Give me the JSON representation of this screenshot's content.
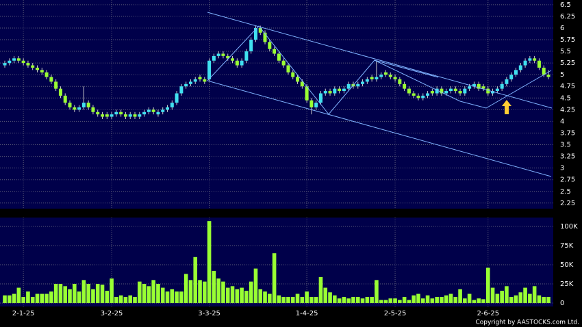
{
  "chart_data": {
    "type": "candlestick",
    "up_color": "#40e0f0",
    "down_color": "#99ff33",
    "volume_color": "#99ff33",
    "credit": "Copyright by AASTOCKS.com Ltd.",
    "categories": [
      null,
      null,
      null,
      null,
      "2-1-25",
      null,
      null,
      null,
      null,
      null,
      null,
      null,
      null,
      null,
      null,
      null,
      null,
      null,
      null,
      null,
      null,
      null,
      null,
      "3-2-25",
      null,
      null,
      null,
      null,
      null,
      null,
      null,
      null,
      null,
      null,
      null,
      null,
      null,
      null,
      null,
      null,
      null,
      null,
      null,
      null,
      "3-3-25",
      null,
      null,
      null,
      null,
      null,
      null,
      null,
      null,
      null,
      null,
      null,
      null,
      null,
      null,
      null,
      null,
      null,
      null,
      null,
      null,
      "1-4-25",
      null,
      null,
      null,
      null,
      null,
      null,
      null,
      null,
      null,
      null,
      null,
      null,
      null,
      null,
      null,
      null,
      null,
      null,
      "2-5-25",
      null,
      null,
      null,
      null,
      null,
      null,
      null,
      null,
      null,
      null,
      null,
      null,
      null,
      null,
      null,
      null,
      null,
      null,
      null,
      "2-6-25",
      null,
      null,
      null,
      null,
      null,
      null,
      null,
      null,
      null,
      null,
      null,
      null,
      null
    ],
    "candles": [
      [
        5.2,
        5.3,
        5.15,
        5.25
      ],
      [
        5.25,
        5.35,
        5.2,
        5.3
      ],
      [
        5.3,
        5.4,
        5.25,
        5.35
      ],
      [
        5.35,
        5.4,
        5.25,
        5.3
      ],
      [
        5.3,
        5.35,
        5.2,
        5.25
      ],
      [
        5.25,
        5.3,
        5.15,
        5.2
      ],
      [
        5.2,
        5.25,
        5.1,
        5.15
      ],
      [
        5.15,
        5.2,
        5.05,
        5.1
      ],
      [
        5.1,
        5.15,
        5.0,
        5.05
      ],
      [
        5.05,
        5.1,
        4.9,
        4.95
      ],
      [
        4.95,
        5.0,
        4.8,
        4.85
      ],
      [
        4.85,
        4.9,
        4.65,
        4.7
      ],
      [
        4.7,
        4.75,
        4.5,
        4.55
      ],
      [
        4.55,
        4.6,
        4.35,
        4.4
      ],
      [
        4.4,
        4.45,
        4.25,
        4.3
      ],
      [
        4.3,
        4.35,
        4.2,
        4.25
      ],
      [
        4.25,
        4.35,
        4.2,
        4.3
      ],
      [
        4.3,
        4.75,
        4.25,
        4.4
      ],
      [
        4.4,
        4.45,
        4.25,
        4.3
      ],
      [
        4.3,
        4.35,
        4.15,
        4.2
      ],
      [
        4.2,
        4.25,
        4.1,
        4.15
      ],
      [
        4.15,
        4.2,
        4.05,
        4.1
      ],
      [
        4.15,
        4.2,
        4.05,
        4.1
      ],
      [
        4.1,
        4.2,
        4.05,
        4.15
      ],
      [
        4.15,
        4.25,
        4.1,
        4.2
      ],
      [
        4.2,
        4.25,
        4.1,
        4.15
      ],
      [
        4.15,
        4.2,
        4.05,
        4.1
      ],
      [
        4.1,
        4.2,
        4.05,
        4.15
      ],
      [
        4.15,
        4.2,
        4.05,
        4.1
      ],
      [
        4.1,
        4.2,
        4.05,
        4.15
      ],
      [
        4.15,
        4.25,
        4.1,
        4.2
      ],
      [
        4.2,
        4.3,
        4.15,
        4.25
      ],
      [
        4.25,
        4.3,
        4.15,
        4.2
      ],
      [
        4.15,
        4.25,
        4.1,
        4.2
      ],
      [
        4.2,
        4.3,
        4.15,
        4.25
      ],
      [
        4.25,
        4.35,
        4.2,
        4.3
      ],
      [
        4.3,
        4.45,
        4.25,
        4.4
      ],
      [
        4.4,
        4.65,
        4.35,
        4.6
      ],
      [
        4.6,
        4.8,
        4.55,
        4.75
      ],
      [
        4.75,
        4.85,
        4.7,
        4.8
      ],
      [
        4.8,
        4.9,
        4.75,
        4.85
      ],
      [
        4.85,
        4.95,
        4.8,
        4.9
      ],
      [
        4.95,
        5.0,
        4.85,
        4.9
      ],
      [
        4.9,
        4.95,
        4.8,
        4.85
      ],
      [
        4.9,
        5.35,
        4.85,
        5.3
      ],
      [
        5.3,
        5.45,
        5.25,
        5.4
      ],
      [
        5.4,
        5.5,
        5.35,
        5.45
      ],
      [
        5.45,
        5.5,
        5.35,
        5.4
      ],
      [
        5.4,
        5.45,
        5.3,
        5.35
      ],
      [
        5.35,
        5.4,
        5.25,
        5.3
      ],
      [
        5.3,
        5.35,
        5.15,
        5.2
      ],
      [
        5.2,
        5.35,
        5.15,
        5.3
      ],
      [
        5.3,
        5.55,
        5.25,
        5.5
      ],
      [
        5.5,
        5.8,
        5.45,
        5.75
      ],
      [
        5.75,
        6.05,
        5.7,
        6.0
      ],
      [
        6.0,
        6.05,
        5.85,
        5.9
      ],
      [
        5.9,
        5.95,
        5.65,
        5.7
      ],
      [
        5.7,
        5.75,
        5.5,
        5.55
      ],
      [
        5.55,
        5.6,
        5.4,
        5.45
      ],
      [
        5.45,
        5.5,
        5.25,
        5.3
      ],
      [
        5.3,
        5.35,
        5.15,
        5.2
      ],
      [
        5.2,
        5.25,
        5.0,
        5.05
      ],
      [
        5.05,
        5.1,
        4.9,
        4.95
      ],
      [
        4.95,
        5.0,
        4.8,
        4.85
      ],
      [
        4.85,
        4.9,
        4.7,
        4.75
      ],
      [
        4.75,
        4.8,
        4.4,
        4.45
      ],
      [
        4.45,
        4.5,
        4.15,
        4.3
      ],
      [
        4.3,
        4.45,
        4.25,
        4.4
      ],
      [
        4.4,
        4.65,
        4.35,
        4.6
      ],
      [
        4.6,
        4.7,
        4.55,
        4.65
      ],
      [
        4.65,
        4.7,
        4.55,
        4.6
      ],
      [
        4.6,
        4.75,
        4.55,
        4.7
      ],
      [
        4.7,
        4.75,
        4.6,
        4.65
      ],
      [
        4.65,
        4.75,
        4.6,
        4.7
      ],
      [
        4.7,
        4.85,
        4.65,
        4.8
      ],
      [
        4.8,
        4.85,
        4.7,
        4.75
      ],
      [
        4.75,
        4.85,
        4.7,
        4.8
      ],
      [
        4.8,
        4.9,
        4.75,
        4.85
      ],
      [
        4.85,
        4.95,
        4.8,
        4.9
      ],
      [
        4.95,
        5.0,
        4.85,
        4.9
      ],
      [
        4.9,
        5.3,
        4.85,
        4.95
      ],
      [
        4.95,
        5.05,
        4.9,
        5.0
      ],
      [
        5.05,
        5.1,
        4.95,
        5.0
      ],
      [
        5.0,
        5.05,
        4.9,
        4.95
      ],
      [
        4.95,
        5.0,
        4.85,
        4.9
      ],
      [
        4.9,
        4.95,
        4.75,
        4.8
      ],
      [
        4.8,
        4.85,
        4.65,
        4.7
      ],
      [
        4.7,
        4.75,
        4.55,
        4.6
      ],
      [
        4.6,
        4.65,
        4.5,
        4.55
      ],
      [
        4.55,
        4.6,
        4.45,
        4.5
      ],
      [
        4.5,
        4.6,
        4.45,
        4.55
      ],
      [
        4.55,
        4.65,
        4.5,
        4.6
      ],
      [
        4.65,
        4.7,
        4.55,
        4.6
      ],
      [
        4.6,
        4.75,
        4.55,
        4.7
      ],
      [
        4.7,
        4.75,
        4.55,
        4.6
      ],
      [
        4.6,
        4.7,
        4.55,
        4.65
      ],
      [
        4.65,
        4.75,
        4.6,
        4.7
      ],
      [
        4.7,
        4.75,
        4.6,
        4.65
      ],
      [
        4.65,
        4.7,
        4.55,
        4.6
      ],
      [
        4.6,
        4.75,
        4.55,
        4.7
      ],
      [
        4.7,
        4.8,
        4.65,
        4.75
      ],
      [
        4.75,
        4.85,
        4.7,
        4.8
      ],
      [
        4.8,
        4.85,
        4.65,
        4.7
      ],
      [
        4.75,
        4.8,
        4.65,
        4.7
      ],
      [
        4.7,
        4.75,
        4.55,
        4.6
      ],
      [
        4.6,
        4.7,
        4.55,
        4.65
      ],
      [
        4.65,
        4.75,
        4.6,
        4.7
      ],
      [
        4.7,
        4.85,
        4.65,
        4.8
      ],
      [
        4.8,
        4.95,
        4.75,
        4.9
      ],
      [
        4.9,
        5.05,
        4.85,
        5.0
      ],
      [
        5.0,
        5.15,
        4.95,
        5.1
      ],
      [
        5.1,
        5.25,
        5.05,
        5.2
      ],
      [
        5.2,
        5.35,
        5.15,
        5.3
      ],
      [
        5.3,
        5.4,
        5.25,
        5.35
      ],
      [
        5.35,
        5.4,
        5.25,
        5.3
      ],
      [
        5.3,
        5.35,
        5.1,
        5.15
      ],
      [
        5.15,
        5.2,
        4.95,
        5.0
      ],
      [
        5.0,
        5.1,
        4.9,
        4.95
      ]
    ],
    "volume": [
      10000,
      10000,
      12000,
      20000,
      8000,
      15000,
      8000,
      12000,
      12000,
      12000,
      15000,
      25000,
      25000,
      22000,
      18000,
      25000,
      15000,
      30000,
      25000,
      18000,
      25000,
      24000,
      16000,
      32000,
      8000,
      10000,
      8000,
      10000,
      8000,
      28000,
      25000,
      22000,
      30000,
      25000,
      20000,
      15000,
      18000,
      15000,
      15000,
      38000,
      30000,
      60000,
      30000,
      28000,
      107000,
      42000,
      32000,
      28000,
      20000,
      22000,
      18000,
      20000,
      16000,
      28000,
      45000,
      18000,
      15000,
      12000,
      65000,
      10000,
      8000,
      8000,
      8000,
      12000,
      8000,
      15000,
      8000,
      8000,
      34000,
      20000,
      14000,
      10000,
      6000,
      8000,
      6000,
      8000,
      8000,
      6000,
      8000,
      8000,
      30000,
      4000,
      4000,
      6000,
      6000,
      4000,
      8000,
      4000,
      10000,
      12000,
      6000,
      10000,
      6000,
      8000,
      8000,
      10000,
      12000,
      8000,
      18000,
      6000,
      12000,
      4000,
      6000,
      5000,
      46000,
      20000,
      12000,
      16000,
      22000,
      8000,
      10000,
      14000,
      20000,
      12000,
      22000,
      10000,
      8000,
      8000
    ],
    "ylim": [
      2.13,
      6.6
    ],
    "yticks": [
      6.5,
      6.25,
      6,
      5.75,
      5.5,
      5.25,
      5,
      4.75,
      4.5,
      4.25,
      4,
      3.75,
      3.5,
      3.25,
      3,
      2.75,
      2.5,
      2.25
    ],
    "volume_ylim": [
      -4500,
      111600
    ],
    "volume_yticks": [
      {
        "value": 100000,
        "label": "100K"
      },
      {
        "value": 75000,
        "label": "75K"
      },
      {
        "value": 50000,
        "label": "50K"
      },
      {
        "value": 25000,
        "label": "25K"
      },
      0
    ],
    "grid": true
  }
}
